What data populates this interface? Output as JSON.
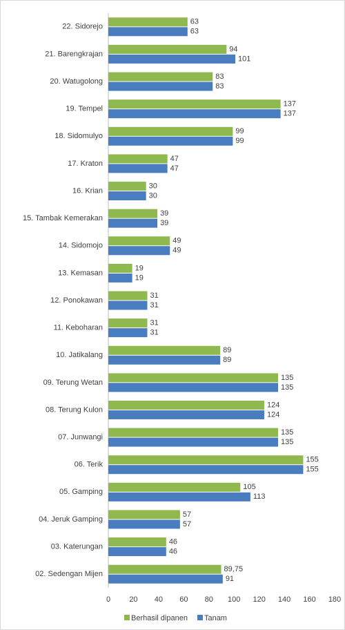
{
  "chart_data": {
    "type": "bar",
    "orientation": "horizontal",
    "categories": [
      "22. Sidorejo",
      "21. Barengkrajan",
      "20. Watugolong",
      "19. Tempel",
      "18. Sidomulyo",
      "17. Kraton",
      "16. Krian",
      "15. Tambak Kemerakan",
      "14. Sidomojo",
      "13. Kemasan",
      "12. Ponokawan",
      "11. Keboharan",
      "10. Jatikalang",
      "09. Terung Wetan",
      "08. Terung Kulon",
      "07. Junwangi",
      "06. Terik",
      "05. Gamping",
      "04. Jeruk Gamping",
      "03. Katerungan",
      "02. Sedengan Mijen"
    ],
    "series": [
      {
        "name": "Berhasil dipanen",
        "color": "#8fb84f",
        "values": [
          63,
          94,
          83,
          137,
          99,
          47,
          30,
          39,
          49,
          19,
          31,
          31,
          89,
          135,
          124,
          135,
          155,
          105,
          57,
          46,
          89.75
        ],
        "value_labels": [
          "63",
          "94",
          "83",
          "137",
          "99",
          "47",
          "30",
          "39",
          "49",
          "19",
          "31",
          "31",
          "89",
          "135",
          "124",
          "135",
          "155",
          "105",
          "57",
          "46",
          "89,75"
        ]
      },
      {
        "name": "Tanam",
        "color": "#4a7cc0",
        "values": [
          63,
          101,
          83,
          137,
          99,
          47,
          30,
          39,
          49,
          19,
          31,
          31,
          89,
          135,
          124,
          135,
          155,
          113,
          57,
          46,
          91
        ]
      }
    ],
    "xlim": [
      0,
      180
    ],
    "xticks": [
      0,
      20,
      40,
      60,
      80,
      100,
      120,
      140,
      160,
      180
    ],
    "legend": "bottom"
  }
}
